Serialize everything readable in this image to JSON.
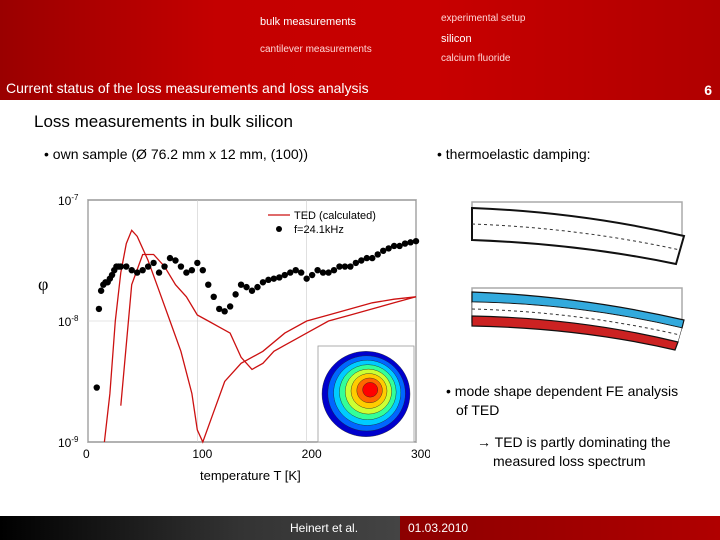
{
  "nav": {
    "bulk": "bulk measurements",
    "cantilever": "cantilever measurements",
    "setup": "experimental setup",
    "silicon": "silicon",
    "calcium": "calcium fluoride"
  },
  "header": {
    "title": "Current status of the loss measurements and loss analysis",
    "page_number": "6"
  },
  "section_title": "Loss measurements in bulk silicon",
  "bullets": {
    "sample": "• own sample (Ø 76.2 mm x 12 mm, (100))",
    "ted": "• thermoelastic damping:",
    "fe1": "• mode shape dependent FE analysis",
    "fe2": "of TED",
    "arrow1": "→ TED is partly dominating the",
    "arrow2": "measured loss spectrum"
  },
  "chart_data": {
    "type": "line",
    "xlabel": "temperature T [K]",
    "ylabel": "φ",
    "x_ticks": [
      "0",
      "100",
      "200",
      "300"
    ],
    "y_ticks": [
      "10^-7",
      "10^-8",
      "10^-9"
    ],
    "xlim": [
      0,
      300
    ],
    "ylim_log10": [
      -9,
      -7
    ],
    "legend": [
      "TED (calculated)",
      "f=24.1kHz"
    ],
    "legend_position": "top-right",
    "series": [
      {
        "name": "TED (calculated)",
        "x": [
          15,
          20,
          25,
          30,
          35,
          40,
          45,
          55,
          65,
          75,
          85,
          95,
          100,
          105,
          115,
          125,
          140,
          160,
          180,
          200,
          220,
          240,
          260,
          280,
          300
        ],
        "y": [
          -9.0,
          -8.6,
          -8.0,
          -7.6,
          -7.36,
          -7.25,
          -7.3,
          -7.5,
          -7.75,
          -8.0,
          -8.25,
          -8.6,
          -8.9,
          -9.0,
          -8.75,
          -8.5,
          -8.35,
          -8.25,
          -8.1,
          -8.0,
          -7.95,
          -7.9,
          -7.85,
          -7.82,
          -7.8
        ]
      },
      {
        "name": "TED (calculated)",
        "x": [
          30,
          40,
          50,
          60,
          70,
          80,
          90,
          100,
          110,
          120,
          130,
          140,
          150,
          160,
          170,
          180,
          190,
          200,
          220,
          240,
          260,
          280,
          300
        ],
        "y": [
          -8.7,
          -7.7,
          -7.45,
          -7.45,
          -7.55,
          -7.7,
          -7.8,
          -7.95,
          -8.0,
          -8.05,
          -8.1,
          -8.3,
          -8.4,
          -8.35,
          -8.25,
          -8.2,
          -8.15,
          -8.1,
          -8.0,
          -7.95,
          -7.9,
          -7.85,
          -7.8
        ]
      },
      {
        "name": "f=24.1kHz",
        "x": [
          8,
          10,
          12,
          14,
          16,
          18,
          20,
          22,
          24,
          26,
          28,
          30,
          35,
          40,
          45,
          50,
          55,
          60,
          65,
          70,
          75,
          80,
          85,
          90,
          95,
          100,
          105,
          110,
          115,
          120,
          125,
          130,
          135,
          140,
          145,
          150,
          155,
          160,
          165,
          170,
          175,
          180,
          185,
          190,
          195,
          200,
          205,
          210,
          215,
          220,
          225,
          230,
          235,
          240,
          245,
          250,
          255,
          260,
          265,
          270,
          275,
          280,
          285,
          290,
          295,
          300
        ],
        "y": [
          -8.55,
          -7.9,
          -7.75,
          -7.7,
          -7.68,
          -7.68,
          -7.65,
          -7.62,
          -7.58,
          -7.55,
          -7.55,
          -7.55,
          -7.55,
          -7.58,
          -7.6,
          -7.58,
          -7.55,
          -7.52,
          -7.6,
          -7.55,
          -7.48,
          -7.5,
          -7.55,
          -7.6,
          -7.58,
          -7.52,
          -7.58,
          -7.7,
          -7.8,
          -7.9,
          -7.92,
          -7.88,
          -7.78,
          -7.7,
          -7.72,
          -7.75,
          -7.72,
          -7.68,
          -7.66,
          -7.65,
          -7.64,
          -7.62,
          -7.6,
          -7.58,
          -7.6,
          -7.65,
          -7.62,
          -7.58,
          -7.6,
          -7.6,
          -7.58,
          -7.55,
          -7.55,
          -7.55,
          -7.52,
          -7.5,
          -7.48,
          -7.48,
          -7.45,
          -7.42,
          -7.4,
          -7.38,
          -7.38,
          -7.36,
          -7.35,
          -7.34
        ]
      }
    ]
  },
  "inset": {
    "label": "mode shape",
    "colors": [
      "#0000cc",
      "#0066ff",
      "#00ccff",
      "#33ff99",
      "#ccff33",
      "#ffcc00",
      "#ff6600",
      "#ff0000"
    ]
  },
  "footer": {
    "author": "Heinert et al.",
    "date": "01.03.2010"
  },
  "colors": {
    "header_red": "#c40000",
    "ted_line": "#cc1111",
    "points": "#000000",
    "beam_blue": "#33aadd",
    "beam_red": "#cc2222"
  }
}
